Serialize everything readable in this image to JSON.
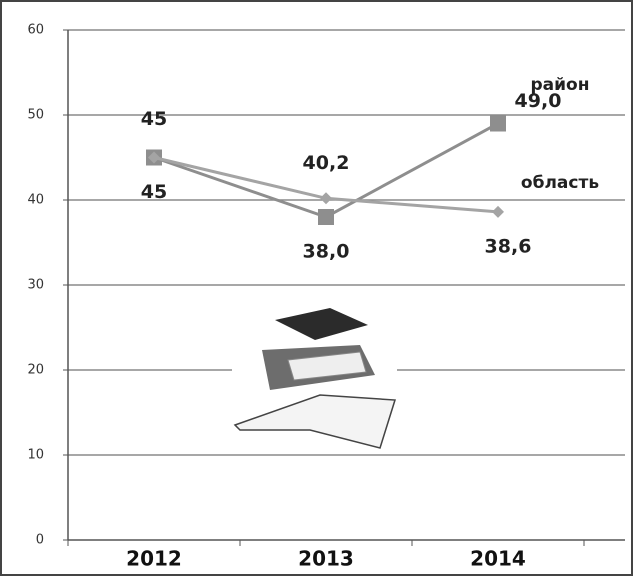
{
  "chart_data": {
    "type": "line",
    "categories": [
      "2012",
      "2013",
      "2014"
    ],
    "series": [
      {
        "name": "район",
        "color": "#8e8e8e",
        "marker": "square",
        "values": [
          45,
          38.0,
          49.0
        ],
        "value_labels": [
          "45",
          "38,0",
          "49,0"
        ]
      },
      {
        "name": "область",
        "color": "#a4a4a4",
        "marker": "diamond",
        "values": [
          45,
          40.2,
          38.6
        ],
        "value_labels": [
          "45",
          "40,2",
          "38,6"
        ]
      }
    ],
    "ylim": [
      0,
      60
    ],
    "yticks": [
      0,
      10,
      20,
      30,
      40,
      50,
      60
    ],
    "grid": true
  }
}
